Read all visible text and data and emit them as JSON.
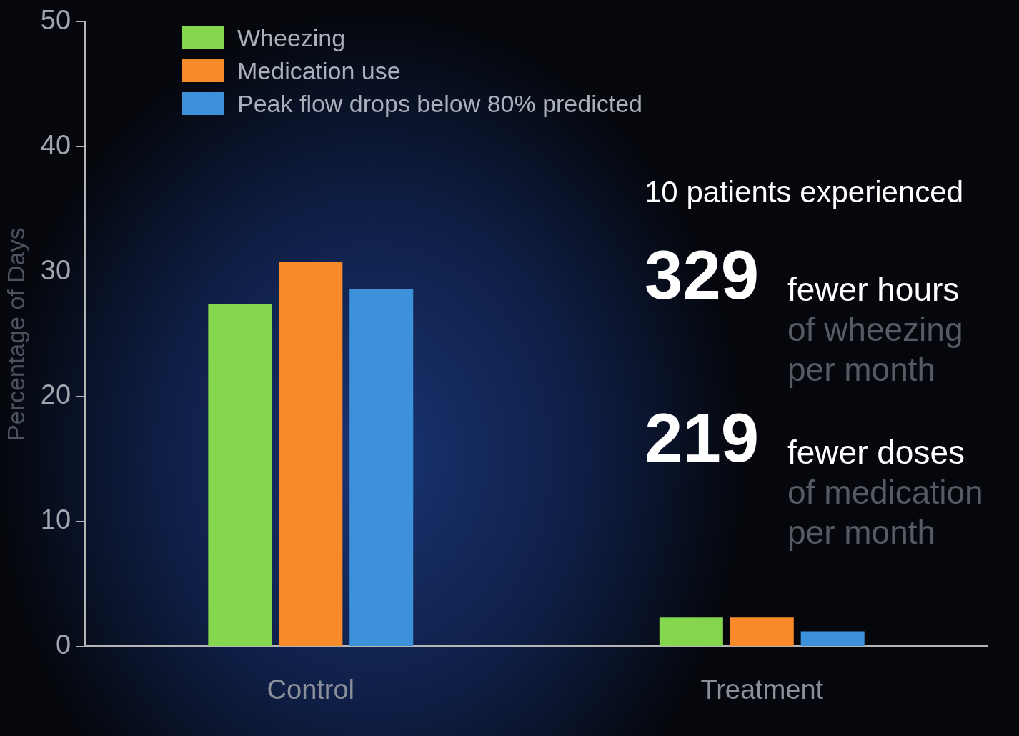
{
  "chart_data": {
    "type": "bar",
    "ylabel": "Percentage of Days",
    "categories": [
      "Control",
      "Treatment"
    ],
    "series": [
      {
        "name": "Wheezing",
        "color": "#84d64c",
        "values": [
          27.4,
          2.3
        ]
      },
      {
        "name": "Medication use",
        "color": "#f88a2a",
        "values": [
          30.8,
          2.3
        ]
      },
      {
        "name": "Peak flow drops below 80% predicted",
        "color": "#3d91da",
        "values": [
          28.6,
          1.2
        ]
      }
    ],
    "ylim": [
      0,
      50
    ],
    "yticks": [
      0,
      10,
      20,
      30,
      40,
      50
    ],
    "grid": false,
    "legend": "top left",
    "annotations": [
      "10 patients experienced",
      "329",
      "fewer hours",
      "of wheezing",
      "per month",
      "219",
      "fewer doses",
      "of medication",
      "per month"
    ]
  }
}
